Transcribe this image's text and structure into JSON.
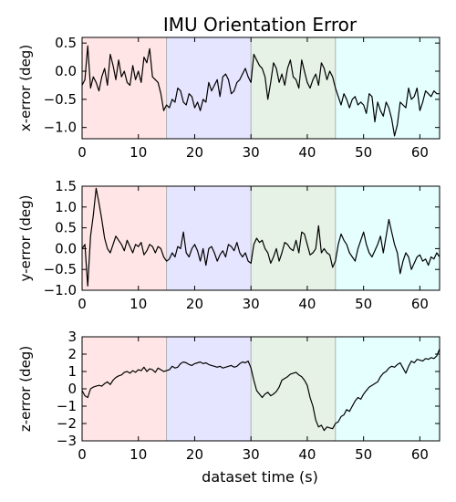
{
  "chart_data": {
    "type": "line",
    "title": "IMU Orientation Error",
    "xlabel": "dataset time (s)",
    "xlim": [
      0,
      63.5
    ],
    "xticks": [
      0,
      10,
      20,
      30,
      40,
      50,
      60
    ],
    "segments": [
      {
        "start": 0,
        "end": 15,
        "color": "#ffe5e5"
      },
      {
        "start": 15,
        "end": 30,
        "color": "#e5e5ff"
      },
      {
        "start": 30,
        "end": 45,
        "color": "#e6f2e6"
      },
      {
        "start": 45,
        "end": 63.5,
        "color": "#e5ffff"
      }
    ],
    "subplots": [
      {
        "ylabel": "x-error (deg)",
        "ylim": [
          -1.2,
          0.6
        ],
        "yticks": [
          -1.0,
          -0.5,
          0.0,
          0.5
        ],
        "ytick_labels": [
          "−1.0",
          "−0.5",
          "0.0",
          "0.5"
        ],
        "series": [
          {
            "color": "#000000",
            "x": [
              0,
              0.5,
              1,
              1.5,
              2,
              2.5,
              3,
              3.5,
              4,
              4.5,
              5,
              5.5,
              6,
              6.5,
              7,
              7.5,
              8,
              8.5,
              9,
              9.5,
              10,
              10.5,
              11,
              11.5,
              12,
              12.5,
              13,
              13.5,
              14,
              14.5,
              15,
              15.5,
              16,
              16.5,
              17,
              17.5,
              18,
              18.5,
              19,
              19.5,
              20,
              20.5,
              21,
              21.5,
              22,
              22.5,
              23,
              23.5,
              24,
              24.5,
              25,
              25.5,
              26,
              26.5,
              27,
              27.5,
              28,
              28.5,
              29,
              29.5,
              30,
              30.5,
              31,
              31.5,
              32,
              32.5,
              33,
              33.5,
              34,
              34.5,
              35,
              35.5,
              36,
              36.5,
              37,
              37.5,
              38,
              38.5,
              39,
              39.5,
              40,
              40.5,
              41,
              41.5,
              42,
              42.5,
              43,
              43.5,
              44,
              44.5,
              45,
              45.5,
              46,
              46.5,
              47,
              47.5,
              48,
              48.5,
              49,
              49.5,
              50,
              50.5,
              51,
              51.5,
              52,
              52.5,
              53,
              53.5,
              54,
              54.5,
              55,
              55.5,
              56,
              56.5,
              57,
              57.5,
              58,
              58.5,
              59,
              59.5,
              60,
              60.5,
              61,
              61.5,
              62,
              62.5,
              63,
              63.5
            ],
            "y": [
              -0.25,
              -0.15,
              0.45,
              -0.3,
              -0.1,
              -0.2,
              -0.35,
              -0.1,
              0.05,
              -0.25,
              0.3,
              0.1,
              -0.15,
              0.2,
              -0.1,
              0.0,
              -0.2,
              -0.25,
              0.1,
              -0.15,
              0.0,
              -0.2,
              0.25,
              0.15,
              0.4,
              -0.1,
              -0.15,
              -0.2,
              -0.4,
              -0.7,
              -0.6,
              -0.65,
              -0.5,
              -0.55,
              -0.3,
              -0.35,
              -0.55,
              -0.6,
              -0.4,
              -0.45,
              -0.65,
              -0.55,
              -0.7,
              -0.5,
              -0.55,
              -0.2,
              -0.35,
              -0.25,
              -0.15,
              -0.45,
              -0.1,
              -0.05,
              -0.15,
              -0.4,
              -0.35,
              -0.2,
              -0.15,
              -0.05,
              0.05,
              -0.1,
              -0.2,
              0.3,
              0.2,
              0.1,
              0.05,
              -0.1,
              -0.5,
              -0.2,
              0.15,
              0.05,
              -0.2,
              -0.05,
              -0.25,
              0.05,
              0.2,
              -0.1,
              -0.15,
              -0.3,
              0.2,
              0.0,
              -0.2,
              -0.3,
              -0.15,
              -0.05,
              -0.25,
              0.15,
              0.05,
              -0.15,
              0.0,
              -0.1,
              -0.3,
              -0.45,
              -0.6,
              -0.4,
              -0.5,
              -0.65,
              -0.5,
              -0.45,
              -0.6,
              -0.55,
              -0.6,
              -0.75,
              -0.4,
              -0.45,
              -0.9,
              -0.55,
              -0.7,
              -0.8,
              -0.55,
              -0.65,
              -0.85,
              -1.15,
              -0.95,
              -0.55,
              -0.6,
              -0.65,
              -0.3,
              -0.5,
              -0.45,
              -0.3,
              -0.7,
              -0.55,
              -0.35,
              -0.4,
              -0.45,
              -0.35,
              -0.4,
              -0.4
            ]
          }
        ]
      },
      {
        "ylabel": "y-error (deg)",
        "ylim": [
          -1.0,
          1.5
        ],
        "yticks": [
          -1.0,
          -0.5,
          0.0,
          0.5,
          1.0,
          1.5
        ],
        "ytick_labels": [
          "−1.0",
          "−0.5",
          "0.0",
          "0.5",
          "1.0",
          "1.5"
        ],
        "series": [
          {
            "color": "#000000",
            "x": [
              0,
              0.5,
              1,
              1.5,
              2,
              2.5,
              3,
              3.5,
              4,
              4.5,
              5,
              5.5,
              6,
              6.5,
              7,
              7.5,
              8,
              8.5,
              9,
              9.5,
              10,
              10.5,
              11,
              11.5,
              12,
              12.5,
              13,
              13.5,
              14,
              14.5,
              15,
              15.5,
              16,
              16.5,
              17,
              17.5,
              18,
              18.5,
              19,
              19.5,
              20,
              20.5,
              21,
              21.5,
              22,
              22.5,
              23,
              23.5,
              24,
              24.5,
              25,
              25.5,
              26,
              26.5,
              27,
              27.5,
              28,
              28.5,
              29,
              29.5,
              30,
              30.5,
              31,
              31.5,
              32,
              32.5,
              33,
              33.5,
              34,
              34.5,
              35,
              35.5,
              36,
              36.5,
              37,
              37.5,
              38,
              38.5,
              39,
              39.5,
              40,
              40.5,
              41,
              41.5,
              42,
              42.5,
              43,
              43.5,
              44,
              44.5,
              45,
              45.5,
              46,
              46.5,
              47,
              47.5,
              48,
              48.5,
              49,
              49.5,
              50,
              50.5,
              51,
              51.5,
              52,
              52.5,
              53,
              53.5,
              54,
              54.5,
              55,
              55.5,
              56,
              56.5,
              57,
              57.5,
              58,
              58.5,
              59,
              59.5,
              60,
              60.5,
              61,
              61.5,
              62,
              62.5,
              63,
              63.5
            ],
            "y": [
              0.0,
              0.1,
              -0.9,
              0.3,
              0.8,
              1.45,
              1.1,
              0.7,
              0.25,
              0.0,
              -0.1,
              0.1,
              0.3,
              0.2,
              0.1,
              -0.05,
              0.2,
              0.05,
              -0.1,
              0.1,
              0.05,
              0.15,
              -0.15,
              -0.05,
              0.1,
              0.05,
              -0.1,
              0.05,
              0.0,
              -0.2,
              -0.3,
              -0.25,
              -0.1,
              -0.2,
              0.05,
              0.0,
              0.4,
              -0.1,
              -0.2,
              0.0,
              0.1,
              -0.05,
              -0.3,
              0.0,
              -0.4,
              0.0,
              0.05,
              -0.1,
              -0.3,
              -0.15,
              -0.05,
              -0.2,
              0.1,
              0.05,
              -0.05,
              0.15,
              -0.1,
              -0.2,
              -0.1,
              -0.3,
              -0.35,
              0.1,
              0.25,
              0.15,
              0.2,
              0.0,
              -0.1,
              -0.35,
              -0.2,
              0.0,
              -0.3,
              -0.1,
              0.15,
              0.1,
              0.0,
              -0.05,
              0.2,
              -0.1,
              0.4,
              0.35,
              0.1,
              -0.15,
              -0.1,
              0.0,
              0.55,
              -0.1,
              0.0,
              -0.1,
              -0.15,
              -0.45,
              -0.3,
              0.1,
              0.35,
              0.2,
              0.1,
              -0.1,
              -0.2,
              -0.3,
              0.0,
              0.2,
              0.4,
              0.1,
              -0.1,
              -0.2,
              -0.05,
              0.1,
              0.3,
              -0.1,
              0.3,
              0.7,
              0.4,
              0.1,
              -0.1,
              -0.6,
              -0.3,
              -0.1,
              -0.2,
              -0.5,
              -0.35,
              -0.2,
              -0.15,
              -0.3,
              -0.25,
              -0.4,
              -0.2,
              -0.25,
              -0.1,
              -0.2
            ]
          }
        ]
      },
      {
        "ylabel": "z-error (deg)",
        "ylim": [
          -3,
          3
        ],
        "yticks": [
          -3,
          -2,
          -1,
          0,
          1,
          2,
          3
        ],
        "ytick_labels": [
          "−3",
          "−2",
          "−1",
          "0",
          "1",
          "2",
          "3"
        ],
        "series": [
          {
            "color": "#000000",
            "x": [
              0,
              0.5,
              1,
              1.5,
              2,
              2.5,
              3,
              3.5,
              4,
              4.5,
              5,
              5.5,
              6,
              6.5,
              7,
              7.5,
              8,
              8.5,
              9,
              9.5,
              10,
              10.5,
              11,
              11.5,
              12,
              12.5,
              13,
              13.5,
              14,
              14.5,
              15,
              15.5,
              16,
              16.5,
              17,
              17.5,
              18,
              18.5,
              19,
              19.5,
              20,
              20.5,
              21,
              21.5,
              22,
              22.5,
              23,
              23.5,
              24,
              24.5,
              25,
              25.5,
              26,
              26.5,
              27,
              27.5,
              28,
              28.5,
              29,
              29.5,
              30,
              30.5,
              31,
              31.5,
              32,
              32.5,
              33,
              33.5,
              34,
              34.5,
              35,
              35.5,
              36,
              36.5,
              37,
              37.5,
              38,
              38.5,
              39,
              39.5,
              40,
              40.5,
              41,
              41.5,
              42,
              42.5,
              43,
              43.5,
              44,
              44.5,
              45,
              45.5,
              46,
              46.5,
              47,
              47.5,
              48,
              48.5,
              49,
              49.5,
              50,
              50.5,
              51,
              51.5,
              52,
              52.5,
              53,
              53.5,
              54,
              54.5,
              55,
              55.5,
              56,
              56.5,
              57,
              57.5,
              58,
              58.5,
              59,
              59.5,
              60,
              60.5,
              61,
              61.5,
              62,
              62.5,
              63,
              63.5
            ],
            "y": [
              -0.1,
              -0.4,
              -0.5,
              0.0,
              0.1,
              0.15,
              0.2,
              0.15,
              0.3,
              0.4,
              0.25,
              0.5,
              0.65,
              0.75,
              0.8,
              0.95,
              1.0,
              0.9,
              1.05,
              0.95,
              1.1,
              1.05,
              1.25,
              1.0,
              1.15,
              1.1,
              0.95,
              1.2,
              1.1,
              1.0,
              1.05,
              1.1,
              1.3,
              1.2,
              1.25,
              1.45,
              1.55,
              1.5,
              1.4,
              1.35,
              1.45,
              1.5,
              1.55,
              1.45,
              1.5,
              1.4,
              1.35,
              1.3,
              1.25,
              1.3,
              1.2,
              1.25,
              1.3,
              1.35,
              1.25,
              1.3,
              1.45,
              1.55,
              1.5,
              1.6,
              1.2,
              0.5,
              -0.1,
              -0.3,
              -0.5,
              -0.3,
              -0.2,
              -0.4,
              -0.3,
              -0.15,
              0.1,
              0.5,
              0.6,
              0.7,
              0.85,
              0.9,
              0.95,
              0.8,
              0.7,
              0.5,
              0.2,
              -0.5,
              -1.0,
              -1.8,
              -2.2,
              -2.1,
              -2.4,
              -2.2,
              -2.25,
              -2.3,
              -2.0,
              -1.9,
              -1.6,
              -1.5,
              -1.2,
              -1.3,
              -1.0,
              -0.7,
              -0.5,
              -0.6,
              -0.3,
              -0.1,
              0.1,
              0.2,
              0.3,
              0.4,
              0.7,
              0.9,
              1.0,
              1.2,
              1.3,
              1.25,
              1.4,
              1.5,
              1.2,
              0.9,
              1.3,
              1.6,
              1.5,
              1.7,
              1.65,
              1.6,
              1.75,
              1.7,
              1.8,
              1.75,
              1.9,
              2.3
            ]
          }
        ]
      }
    ]
  }
}
